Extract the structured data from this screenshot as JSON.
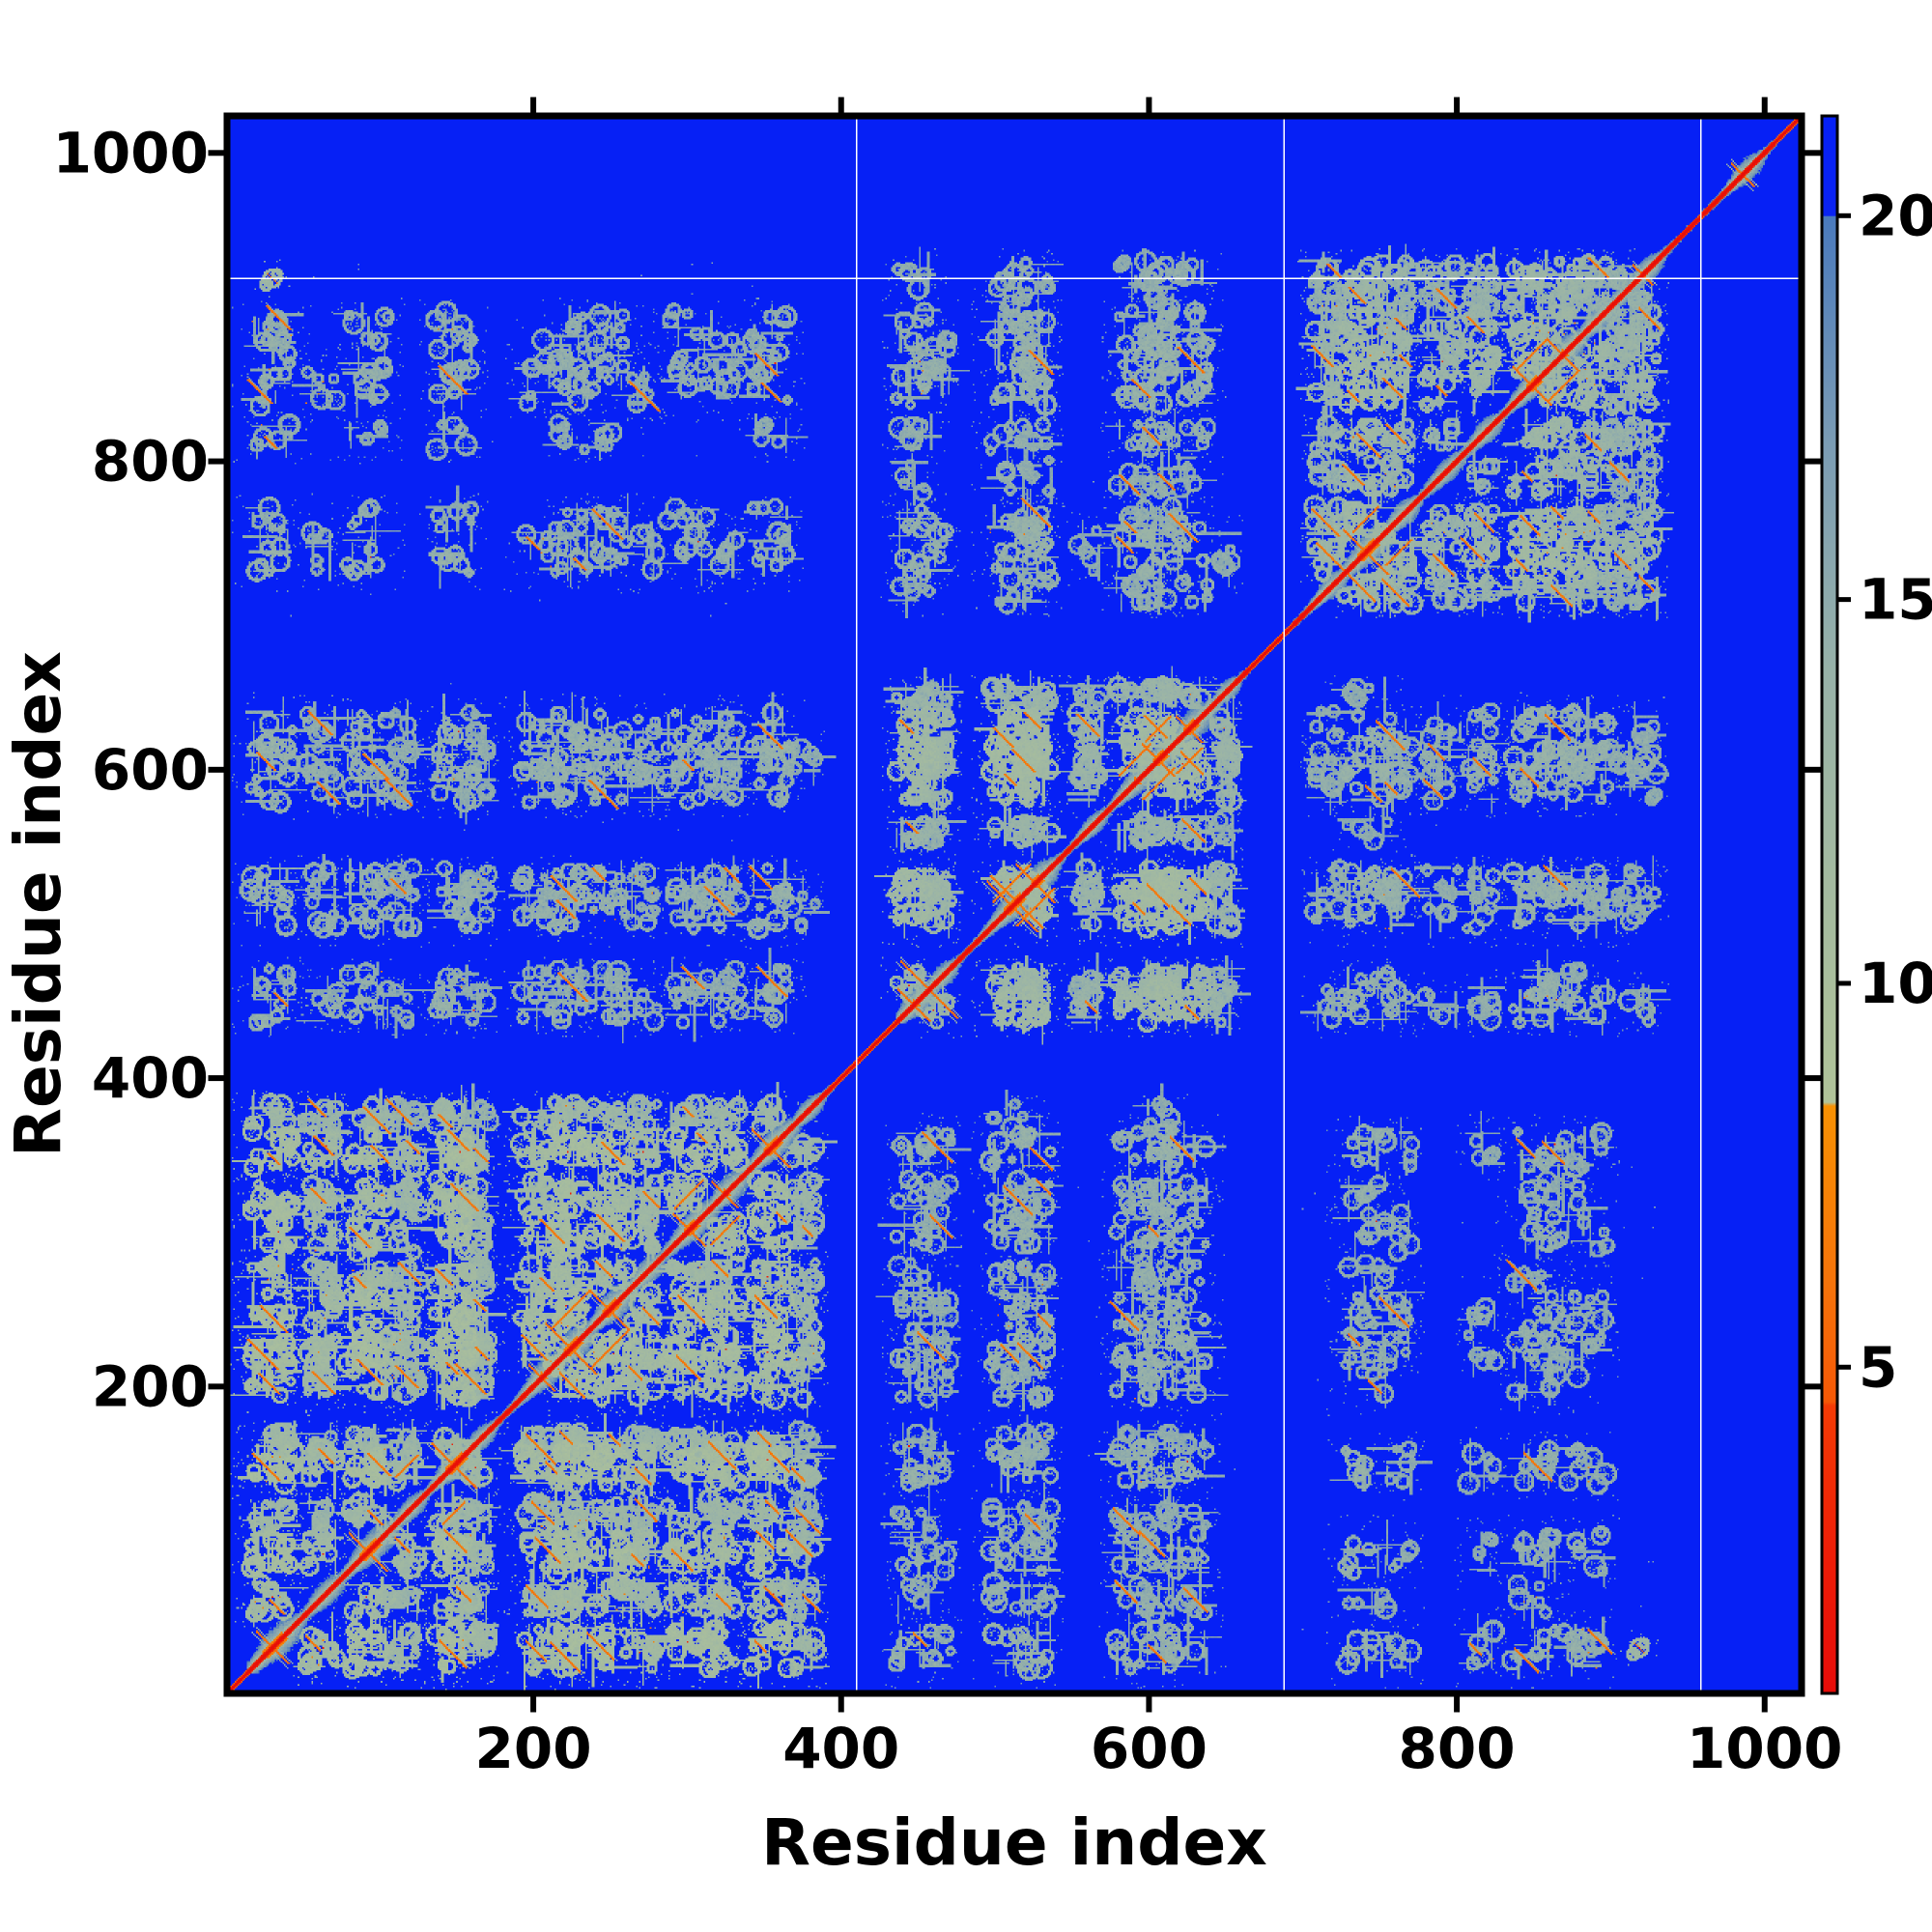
{
  "figure": {
    "background": "#ffffff"
  },
  "chart_data": {
    "type": "heatmap",
    "title": "",
    "xlabel": "Residue index",
    "ylabel": "Residue index",
    "x_range": [
      1,
      1024
    ],
    "y_range": [
      1,
      1024
    ],
    "x_ticks": [
      200,
      400,
      600,
      800,
      1000
    ],
    "y_ticks": [
      200,
      400,
      600,
      800,
      1000
    ],
    "grid": false,
    "legend": "none",
    "colorbar": {
      "position": "right",
      "ticks": [
        5,
        10,
        15,
        20
      ],
      "vmin": 0.75,
      "vmax": 21.3
    },
    "colormap": {
      "name": "red-orange-sage-slate-blue (distance map)",
      "stops": [
        {
          "v": 0.75,
          "c": "#e60c08"
        },
        {
          "v": 2.5,
          "c": "#ee1d07"
        },
        {
          "v": 4.5,
          "c": "#f43b05"
        },
        {
          "v": 4.55,
          "c": "#f55806"
        },
        {
          "v": 6.0,
          "c": "#f5720a"
        },
        {
          "v": 8.4,
          "c": "#f79103"
        },
        {
          "v": 8.45,
          "c": "#b0c399"
        },
        {
          "v": 11.0,
          "c": "#a5bb9f"
        },
        {
          "v": 14.0,
          "c": "#98b2a8"
        },
        {
          "v": 17.0,
          "c": "#7b9cb4"
        },
        {
          "v": 19.99,
          "c": "#4a7abd"
        },
        {
          "v": 20.0,
          "c": "#0a23f2"
        },
        {
          "v": 21.3,
          "c": "#0620f5"
        }
      ]
    },
    "matrix": {
      "description": "Symmetric residue-residue distance map, ~1024 residues. Red main diagonal (near-zero distance), orange hairpin cross-arms along the diagonal, sage-green contact clusters inside three folded domains and between them, deep blue background (distance > 20). Thin white gap lines cross the map.",
      "n_residues": 1024,
      "background_value": 21.3,
      "diagonal_value": 0.9,
      "seed": 1337,
      "domains": [
        [
          14,
          392
        ],
        [
          436,
          664
        ],
        [
          694,
          956
        ],
        [
          960,
          1005
        ]
      ],
      "domain_affinity": [
        [
          1.15,
          0.5,
          0.42,
          0.0
        ],
        [
          0.5,
          1.0,
          0.55,
          0.0
        ],
        [
          0.42,
          0.55,
          1.0,
          0.0
        ],
        [
          0.0,
          0.0,
          0.0,
          1.0
        ]
      ],
      "bands": [
        [
          30,
          14,
          0.95,
          0
        ],
        [
          62,
          10,
          0.7,
          0
        ],
        [
          92,
          13,
          0.9,
          0
        ],
        [
          117,
          9,
          0.6,
          0
        ],
        [
          148,
          12,
          0.95,
          0
        ],
        [
          163,
          8,
          0.6,
          0
        ],
        [
          205,
          13,
          0.8,
          0
        ],
        [
          224,
          10,
          0.95,
          0
        ],
        [
          249,
          12,
          0.9,
          0
        ],
        [
          271,
          9,
          0.7,
          0
        ],
        [
          301,
          14,
          0.85,
          0
        ],
        [
          324,
          10,
          0.8,
          0
        ],
        [
          354,
          12,
          0.9,
          0
        ],
        [
          376,
          8,
          0.55,
          0
        ],
        [
          447,
          11,
          0.8,
          1
        ],
        [
          463,
          8,
          0.6,
          1
        ],
        [
          511,
          14,
          0.9,
          1
        ],
        [
          526,
          10,
          0.85,
          1
        ],
        [
          561,
          8,
          0.5,
          1
        ],
        [
          591,
          12,
          0.8,
          1
        ],
        [
          606,
          10,
          0.9,
          1
        ],
        [
          626,
          12,
          0.85,
          1
        ],
        [
          648,
          7,
          0.5,
          1
        ],
        [
          716,
          9,
          0.6,
          2
        ],
        [
          741,
          14,
          0.9,
          2
        ],
        [
          762,
          9,
          0.7,
          2
        ],
        [
          791,
          11,
          0.6,
          2
        ],
        [
          816,
          9,
          0.65,
          2
        ],
        [
          849,
          13,
          0.85,
          2
        ],
        [
          869,
          11,
          0.8,
          2
        ],
        [
          889,
          9,
          0.7,
          2
        ],
        [
          906,
          7,
          0.5,
          2
        ],
        [
          921,
          9,
          0.6,
          2
        ],
        [
          986,
          9,
          0.6,
          3
        ]
      ],
      "hairpins": [
        [
          30,
          10
        ],
        [
          92,
          12
        ],
        [
          148,
          14
        ],
        [
          205,
          8
        ],
        [
          224,
          16
        ],
        [
          249,
          12
        ],
        [
          301,
          10
        ],
        [
          324,
          8
        ],
        [
          354,
          12
        ],
        [
          447,
          10
        ],
        [
          457,
          18
        ],
        [
          511,
          16
        ],
        [
          526,
          12
        ],
        [
          606,
          10
        ],
        [
          626,
          8
        ],
        [
          741,
          14
        ],
        [
          849,
          12
        ],
        [
          869,
          10
        ],
        [
          921,
          6
        ],
        [
          986,
          7
        ]
      ],
      "parallel_dashes": [
        [
          224,
          249,
          12
        ],
        [
          301,
          324,
          9
        ],
        [
          511,
          526,
          12
        ],
        [
          591,
          606,
          10
        ],
        [
          849,
          869,
          10
        ],
        [
          148,
          117,
          7
        ],
        [
          606,
          626,
          8
        ],
        [
          741,
          762,
          8
        ]
      ],
      "isolated_contacts": [
        [
          30,
          919
        ]
      ],
      "gap_lines": {
        "columns": [
          410,
          688,
          959
        ],
        "rows": [
          919
        ]
      }
    }
  },
  "panel": {
    "plot_border_color": "#000000",
    "tick_color": "#000000",
    "gap_line_color": "#ffffff"
  }
}
